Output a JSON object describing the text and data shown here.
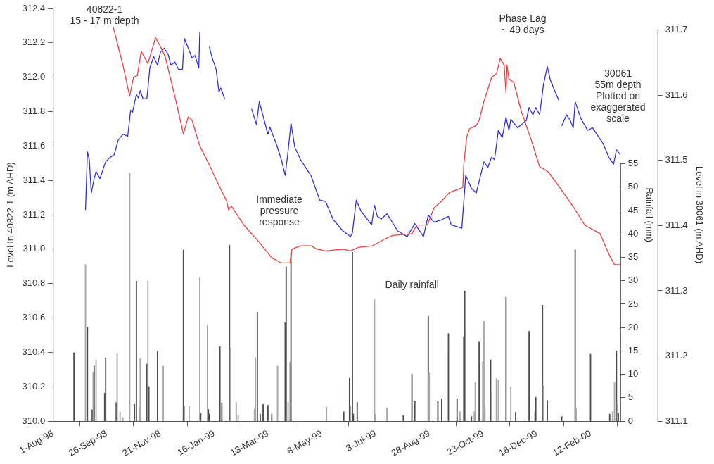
{
  "chart_data": {
    "type": "line",
    "ylabel": "Level in 40822-1 (m AHD)",
    "y2label": "Rainfall (mm)",
    "y3label": "Level in 30061 (m AHD)",
    "xlim": [
      "1998-08-01",
      "2000-03-14"
    ],
    "xticks": [
      {
        "value": "1998-08-01",
        "label": "1-Aug-98"
      },
      {
        "value": "1998-09-26",
        "label": "26-Sep-98"
      },
      {
        "value": "1998-11-21",
        "label": "21-Nov-98"
      },
      {
        "value": "1999-01-16",
        "label": "16-Jan-99"
      },
      {
        "value": "1999-03-13",
        "label": "13-Mar-99"
      },
      {
        "value": "1999-05-08",
        "label": "8-May-99"
      },
      {
        "value": "1999-07-03",
        "label": "3-Jul-99"
      },
      {
        "value": "1999-08-28",
        "label": "28-Aug-99"
      },
      {
        "value": "1999-10-23",
        "label": "23-Oct-99"
      },
      {
        "value": "1999-12-18",
        "label": "18-Dec-99"
      },
      {
        "value": "2000-02-12",
        "label": "12-Feb-00"
      }
    ],
    "ylim": [
      310,
      312.4
    ],
    "yticks": [
      {
        "value": 310,
        "label": "310.0"
      },
      {
        "value": 310.2,
        "label": "310.2"
      },
      {
        "value": 310.4,
        "label": "310.4"
      },
      {
        "value": 310.6,
        "label": "310.6"
      },
      {
        "value": 310.8,
        "label": "310.8"
      },
      {
        "value": 311,
        "label": "311.0"
      },
      {
        "value": 311.2,
        "label": "311.2"
      },
      {
        "value": 311.4,
        "label": "311.4"
      },
      {
        "value": 311.6,
        "label": "311.6"
      },
      {
        "value": 311.8,
        "label": "311.8"
      },
      {
        "value": 312,
        "label": "312.0"
      },
      {
        "value": 312.2,
        "label": "312.2"
      },
      {
        "value": 312.4,
        "label": "312.4"
      }
    ],
    "y2lim": [
      0,
      88.2
    ],
    "y2ticks": [
      0,
      5,
      10,
      15,
      20,
      25,
      30,
      35,
      40,
      45,
      50,
      55
    ],
    "y3lim": [
      311.1,
      311.733
    ],
    "y3ticks": [
      311.1,
      311.2,
      311.3,
      311.4,
      311.5,
      311.6,
      311.7
    ],
    "series": [
      {
        "type": "bar",
        "axis": "y2",
        "x": [
          "1998-08-23",
          "1998-09-04",
          "1998-09-06",
          "1998-09-11",
          "1998-09-12",
          "1998-09-13",
          "1998-09-15",
          "1998-09-24",
          "1998-09-25",
          "1998-10-06",
          "1998-10-07",
          "1998-10-10",
          "1998-10-13",
          "1998-10-20",
          "1998-10-25",
          "1998-10-27",
          "1998-10-30",
          "1998-10-31",
          "1998-11-07",
          "1998-11-08",
          "1998-11-09",
          "1998-11-18",
          "1998-11-24",
          "1998-12-15",
          "1998-12-16",
          "1998-12-21",
          "1999-01-01",
          "1999-01-02",
          "1999-01-09",
          "1999-01-10",
          "1999-01-11",
          "1999-01-22",
          "1999-01-24",
          "1999-02-01",
          "1999-02-02",
          "1999-02-08",
          "1999-02-10",
          "1999-02-27",
          "1999-02-28",
          "1999-03-02",
          "1999-03-05",
          "1999-03-08",
          "1999-03-13",
          "1999-03-17",
          "1999-03-23",
          "1999-03-31",
          "1999-04-01",
          "1999-04-03",
          "1999-04-05",
          "1999-04-06",
          "1999-05-13",
          "1999-05-31",
          "1999-06-06",
          "1999-06-07",
          "1999-06-09",
          "1999-06-10",
          "1999-06-14",
          "1999-07-02",
          "1999-07-03",
          "1999-07-15",
          "1999-08-01",
          "1999-08-10",
          "1999-08-13",
          "1999-08-27",
          "1999-08-28",
          "1999-09-06",
          "1999-09-10",
          "1999-09-17",
          "1999-09-26",
          "1999-09-29",
          "1999-10-03",
          "1999-10-04",
          "1999-10-11",
          "1999-10-14",
          "1999-10-15",
          "1999-10-19",
          "1999-10-23",
          "1999-10-24",
          "1999-10-25",
          "1999-10-31",
          "1999-11-01",
          "1999-11-06",
          "1999-11-08",
          "1999-11-16",
          "1999-11-21",
          "1999-11-26",
          "1999-12-10",
          "1999-12-16",
          "1999-12-17",
          "1999-12-24",
          "1999-12-25",
          "1999-12-29",
          "2000-01-13",
          "2000-01-27",
          "2000-01-28",
          "2000-02-12",
          "2000-03-03",
          "2000-03-06",
          "2000-03-08",
          "2000-03-10",
          "2000-03-11",
          "2000-03-12"
        ],
        "values": [
          14.6,
          33.5,
          20,
          2.4,
          10.5,
          11.8,
          13.1,
          6,
          13.5,
          4,
          14.3,
          2,
          0.8,
          53,
          3.6,
          29.9,
          3,
          13.4,
          12.2,
          29.9,
          7.4,
          14.9,
          11.8,
          36.6,
          3.3,
          3.2,
          30.7,
          1.7,
          20.5,
          2.5,
          1.5,
          15.9,
          3.9,
          37.6,
          15.6,
          4,
          1.2,
          2.5,
          13.6,
          23.3,
          1.5,
          3.6,
          3.4,
          1.5,
          11.8,
          21.1,
          33,
          4,
          12.6,
          36,
          3,
          2,
          9.2,
          3.3,
          36.1,
          1.5,
          4,
          26.1,
          1.5,
          2.8,
          1.2,
          10,
          4.3,
          22.4,
          10.3,
          4.2,
          4.8,
          18.7,
          4.8,
          2,
          18,
          27.8,
          1,
          2,
          8.3,
          16.9,
          12.7,
          21.3,
          3,
          13.1,
          5.8,
          9.1,
          8.8,
          26.5,
          7.4,
          1.9,
          19.2,
          2,
          5.1,
          24.8,
          7.5,
          4.4,
          1,
          36.6,
          2.8,
          14.3,
          1.5,
          2,
          8.3,
          15,
          3.7,
          1.7
        ],
        "colors": [
          "#4d4d4d",
          "#a6a6a6",
          "#4d4d4d",
          "#4d4d4d",
          "#a6a6a6",
          "#4d4d4d",
          "#a6a6a6",
          "#4d4d4d",
          "#4d4d4d",
          "#4d4d4d",
          "#a6a6a6",
          "#a6a6a6",
          "#a6a6a6",
          "#a6a6a6",
          "#4d4d4d",
          "#4d4d4d",
          "#a6a6a6",
          "#a6a6a6",
          "#4d4d4d",
          "#a6a6a6",
          "#4d4d4d",
          "#4d4d4d",
          "#a6a6a6",
          "#4d4d4d",
          "#a6a6a6",
          "#a6a6a6",
          "#a6a6a6",
          "#4d4d4d",
          "#a6a6a6",
          "#4d4d4d",
          "#4d4d4d",
          "#4d4d4d",
          "#4d4d4d",
          "#4d4d4d",
          "#a6a6a6",
          "#a6a6a6",
          "#a6a6a6",
          "#a6a6a6",
          "#a6a6a6",
          "#4d4d4d",
          "#4d4d4d",
          "#4d4d4d",
          "#4d4d4d",
          "#4d4d4d",
          "#a6a6a6",
          "#4d4d4d",
          "#4d4d4d",
          "#a6a6a6",
          "#a6a6a6",
          "#4d4d4d",
          "#a6a6a6",
          "#4d4d4d",
          "#4d4d4d",
          "#a6a6a6",
          "#4d4d4d",
          "#4d4d4d",
          "#4d4d4d",
          "#a6a6a6",
          "#a6a6a6",
          "#a6a6a6",
          "#4d4d4d",
          "#4d4d4d",
          "#4d4d4d",
          "#4d4d4d",
          "#a6a6a6",
          "#4d4d4d",
          "#4d4d4d",
          "#4d4d4d",
          "#4d4d4d",
          "#a6a6a6",
          "#4d4d4d",
          "#4d4d4d",
          "#4d4d4d",
          "#a6a6a6",
          "#a6a6a6",
          "#4d4d4d",
          "#4d4d4d",
          "#a6a6a6",
          "#a6a6a6",
          "#4d4d4d",
          "#a6a6a6",
          "#a6a6a6",
          "#a6a6a6",
          "#4d4d4d",
          "#a6a6a6",
          "#4d4d4d",
          "#4d4d4d",
          "#a6a6a6",
          "#4d4d4d",
          "#4d4d4d",
          "#a6a6a6",
          "#4d4d4d",
          "#4d4d4d",
          "#4d4d4d",
          "#a6a6a6",
          "#4d4d4d",
          "#4d4d4d",
          "#a6a6a6",
          "#a6a6a6",
          "#4d4d4d",
          "#a6a6a6",
          "#4d4d4d"
        ]
      },
      {
        "axis": "y",
        "color": "#f03c3c",
        "x": [
          "1998-10-03",
          "1998-10-08",
          "1998-10-13",
          "1998-10-20",
          "1998-10-24",
          "1998-10-28",
          "1998-11-01",
          "1998-11-08",
          "1998-11-16",
          "1998-11-21",
          "1998-11-26",
          "1998-12-06",
          "1998-12-15",
          "1998-12-20",
          "1998-12-24",
          "1999-01-01",
          "1999-01-11",
          "1999-01-21",
          "1999-01-29",
          "1999-01-31",
          "1999-02-03",
          "1999-02-16",
          "1999-03-04",
          "1999-03-17",
          "1999-03-27",
          "1999-04-05",
          "1999-04-07",
          "1999-04-16",
          "1999-04-27",
          "1999-05-03",
          "1999-05-12",
          "1999-05-30",
          "1999-06-07",
          "1999-06-15",
          "1999-06-30",
          "1999-07-13",
          "1999-07-21",
          "1999-08-10",
          "1999-08-15",
          "1999-08-26",
          "1999-09-02",
          "1999-09-10",
          "1999-09-18",
          "1999-09-28",
          "1999-10-02",
          "1999-10-03",
          "1999-10-06",
          "1999-10-09",
          "1999-10-16",
          "1999-10-19",
          "1999-10-24",
          "1999-11-01",
          "1999-11-06",
          "1999-11-10",
          "1999-11-14",
          "1999-11-16",
          "1999-11-17",
          "1999-11-19",
          "1999-11-24",
          "1999-12-02",
          "1999-12-12",
          "1999-12-21",
          "1999-12-30",
          "2000-01-12",
          "2000-01-27",
          "2000-02-06",
          "2000-02-22",
          "2000-03-03",
          "2000-03-08",
          "2000-03-14"
        ],
        "values": [
          312.29,
          312.18,
          312.07,
          311.89,
          312.0,
          312.01,
          312.15,
          312.08,
          312.23,
          312.18,
          312.12,
          311.89,
          311.67,
          311.77,
          311.75,
          311.6,
          311.49,
          311.37,
          311.28,
          311.23,
          311.25,
          311.14,
          311.04,
          310.95,
          310.92,
          310.92,
          311.0,
          311.02,
          311.02,
          311.0,
          310.99,
          311.0,
          310.99,
          311.01,
          311.02,
          311.06,
          311.08,
          311.09,
          311.14,
          311.14,
          311.24,
          311.28,
          311.33,
          311.35,
          311.36,
          311.49,
          311.65,
          311.7,
          311.72,
          311.75,
          311.86,
          312.0,
          312.02,
          312.11,
          312.07,
          311.91,
          312.07,
          311.99,
          311.97,
          311.8,
          311.64,
          311.48,
          311.45,
          311.35,
          311.23,
          311.14,
          311.09,
          310.96,
          310.91,
          310.91
        ]
      },
      {
        "axis": "y3",
        "color": "#2f2fe0",
        "x": [
          "1998-09-04",
          "1998-09-06",
          "1998-09-08",
          "1998-09-10",
          "1998-09-13",
          "1998-09-15",
          "1998-09-19",
          "1998-09-25",
          "1998-09-30",
          "1998-10-04",
          "1998-10-08",
          "1998-10-13",
          "1998-10-18",
          "1998-10-21",
          "1998-10-23",
          "1998-10-27",
          "1998-10-29",
          "1998-10-31",
          "1998-11-03",
          "1998-11-07",
          "1998-11-10",
          "1998-11-14",
          "1998-11-18",
          "1998-11-21",
          "1998-11-25",
          "1998-11-29",
          "1998-12-02",
          "1998-12-06",
          "1998-12-10",
          "1998-12-14",
          "1998-12-16",
          "1998-12-19",
          "1998-12-24",
          "1998-12-27",
          "1998-12-31",
          "1999-01-01",
          "1999-01-06",
          "1999-01-11",
          "1999-01-14",
          "1999-01-18",
          "1999-01-21",
          "1999-01-23",
          "1999-01-27",
          "1999-02-15",
          "1999-02-24",
          "1999-03-01",
          "1999-03-04",
          "1999-03-13",
          "1999-03-15",
          "1999-03-22",
          "1999-03-27",
          "1999-03-31",
          "1999-04-03",
          "1999-04-06",
          "1999-04-10",
          "1999-04-16",
          "1999-04-27",
          "1999-05-06",
          "1999-05-12",
          "1999-05-20",
          "1999-05-30",
          "1999-06-07",
          "1999-06-09",
          "1999-06-13",
          "1999-06-18",
          "1999-06-29",
          "1999-07-02",
          "1999-07-05",
          "1999-07-09",
          "1999-07-15",
          "1999-07-26",
          "1999-08-05",
          "1999-08-13",
          "1999-08-22",
          "1999-08-27",
          "1999-09-02",
          "1999-09-10",
          "1999-09-17",
          "1999-09-20",
          "1999-10-01",
          "1999-10-05",
          "1999-10-11",
          "1999-10-16",
          "1999-10-24",
          "1999-10-28",
          "1999-11-01",
          "1999-11-04",
          "1999-11-08",
          "1999-11-12",
          "1999-11-16",
          "1999-11-19",
          "1999-11-21",
          "1999-11-28",
          "1999-12-07",
          "1999-12-10",
          "1999-12-14",
          "1999-12-17",
          "1999-12-21",
          "1999-12-25",
          "1999-12-29",
          "2000-01-01",
          "2000-01-05",
          "2000-01-10",
          "2000-01-12",
          "2000-01-13",
          "2000-01-18",
          "2000-01-22",
          "2000-01-25",
          "2000-01-27",
          "2000-02-02",
          "2000-02-09",
          "2000-02-14",
          "2000-02-25",
          "2000-03-02",
          "2000-03-07",
          "2000-03-10",
          "2000-03-14"
        ],
        "values": [
          311.424,
          311.513,
          311.501,
          311.45,
          311.472,
          311.483,
          311.472,
          311.498,
          311.505,
          311.509,
          311.531,
          311.54,
          311.537,
          311.577,
          311.574,
          311.601,
          311.596,
          311.607,
          311.594,
          311.595,
          311.642,
          311.659,
          311.646,
          311.666,
          311.672,
          311.663,
          311.646,
          311.651,
          311.639,
          311.64,
          311.687,
          311.676,
          311.657,
          311.661,
          311.642,
          311.697,
          null,
          311.674,
          311.657,
          311.64,
          311.605,
          311.611,
          311.594,
          null,
          311.579,
          311.555,
          311.59,
          311.54,
          311.551,
          311.524,
          311.501,
          311.477,
          311.514,
          311.557,
          311.52,
          311.501,
          311.476,
          311.439,
          311.437,
          311.409,
          311.392,
          311.383,
          311.389,
          311.439,
          311.422,
          311.401,
          311.431,
          311.414,
          311.41,
          311.418,
          311.392,
          311.383,
          311.403,
          311.383,
          311.416,
          311.405,
          311.409,
          311.414,
          311.401,
          311.396,
          311.477,
          311.457,
          311.45,
          311.498,
          311.489,
          311.505,
          311.501,
          311.546,
          311.535,
          311.566,
          311.546,
          311.563,
          311.55,
          311.561,
          311.581,
          311.57,
          311.581,
          311.57,
          311.616,
          311.644,
          311.624,
          311.609,
          311.592,
          null,
          311.553,
          311.57,
          311.561,
          311.55,
          311.59,
          311.564,
          311.546,
          311.55,
          311.526,
          311.505,
          311.494,
          311.516,
          311.509
        ]
      }
    ],
    "annotations": [
      "40822-1\n15 - 17 m depth",
      "Phase Lag\n~ 49 days",
      "30061\n55m depth\nPlotted on\nexaggerated\nscale",
      "Immediate\npressure\nresponse",
      "Daily rainfall"
    ]
  }
}
